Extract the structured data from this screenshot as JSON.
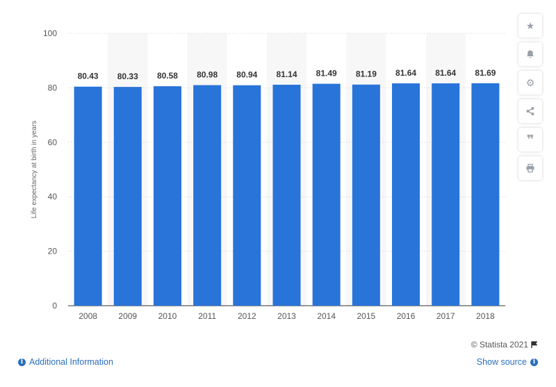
{
  "chart_data": {
    "type": "bar",
    "categories": [
      "2008",
      "2009",
      "2010",
      "2011",
      "2012",
      "2013",
      "2014",
      "2015",
      "2016",
      "2017",
      "2018"
    ],
    "values": [
      80.43,
      80.33,
      80.58,
      80.98,
      80.94,
      81.14,
      81.49,
      81.19,
      81.64,
      81.64,
      81.69
    ],
    "value_labels": [
      "80.43",
      "80.33",
      "80.58",
      "80.98",
      "80.94",
      "81.14",
      "81.49",
      "81.19",
      "81.64",
      "81.64",
      "81.69"
    ],
    "ylabel": "Life expectancy at birth in years",
    "ylim": [
      0,
      100
    ],
    "yticks": [
      0,
      20,
      40,
      60,
      80,
      100
    ],
    "bar_color": "#2874d9",
    "alt_band_color": "#f7f7f7",
    "grid": true
  },
  "toolbar": {
    "icons": [
      "star-icon",
      "bell-icon",
      "gear-icon",
      "share-icon",
      "quote-icon",
      "print-icon"
    ]
  },
  "footer": {
    "credit": "© Statista 2021",
    "additional_info": "Additional Information",
    "show_source": "Show source"
  }
}
